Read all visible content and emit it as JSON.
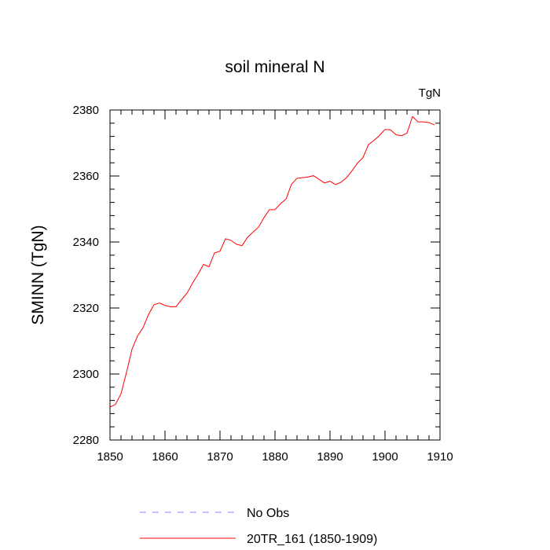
{
  "chart_data": {
    "type": "line",
    "title": "soil mineral N",
    "units_label": "TgN",
    "xlabel": "",
    "ylabel": "SMINN  (TgN)",
    "xlim": [
      1850,
      1910
    ],
    "ylim": [
      2280,
      2380
    ],
    "x_ticks": [
      1850,
      1860,
      1870,
      1880,
      1890,
      1900,
      1910
    ],
    "y_ticks": [
      2280,
      2300,
      2320,
      2340,
      2360,
      2380
    ],
    "x_minor_step": 2,
    "y_minor_step": 4,
    "grid": false,
    "legend_position": "bottom-center",
    "series": [
      {
        "name": "No Obs",
        "color": "#8080ff",
        "style": "dashed",
        "x": [],
        "values": []
      },
      {
        "name": "20TR_161 (1850-1909)",
        "color": "#ff0000",
        "style": "solid",
        "x": [
          1850,
          1851,
          1852,
          1853,
          1854,
          1855,
          1856,
          1857,
          1858,
          1859,
          1860,
          1861,
          1862,
          1863,
          1864,
          1865,
          1866,
          1867,
          1868,
          1869,
          1870,
          1871,
          1872,
          1873,
          1874,
          1875,
          1876,
          1877,
          1878,
          1879,
          1880,
          1881,
          1882,
          1883,
          1884,
          1885,
          1886,
          1887,
          1888,
          1889,
          1890,
          1891,
          1892,
          1893,
          1894,
          1895,
          1896,
          1897,
          1898,
          1899,
          1900,
          1901,
          1902,
          1903,
          1904,
          1905,
          1906,
          1907,
          1908,
          1909
        ],
        "values": [
          2290.0,
          2290.8,
          2294.0,
          2300.5,
          2307.5,
          2311.5,
          2314.0,
          2318.0,
          2321.0,
          2321.5,
          2320.8,
          2320.4,
          2320.4,
          2322.5,
          2324.5,
          2327.5,
          2330.2,
          2333.2,
          2332.5,
          2336.7,
          2337.2,
          2341.0,
          2340.5,
          2339.3,
          2338.9,
          2341.4,
          2343.0,
          2344.5,
          2347.4,
          2349.8,
          2349.8,
          2351.6,
          2353.0,
          2357.5,
          2359.3,
          2359.5,
          2359.7,
          2360.1,
          2359.0,
          2357.9,
          2358.4,
          2357.4,
          2358.1,
          2359.5,
          2361.6,
          2363.9,
          2365.6,
          2369.5,
          2370.8,
          2372.3,
          2374.1,
          2374.0,
          2372.5,
          2372.2,
          2373.0,
          2378.0,
          2376.4,
          2376.4,
          2376.2,
          2375.5
        ]
      }
    ]
  }
}
